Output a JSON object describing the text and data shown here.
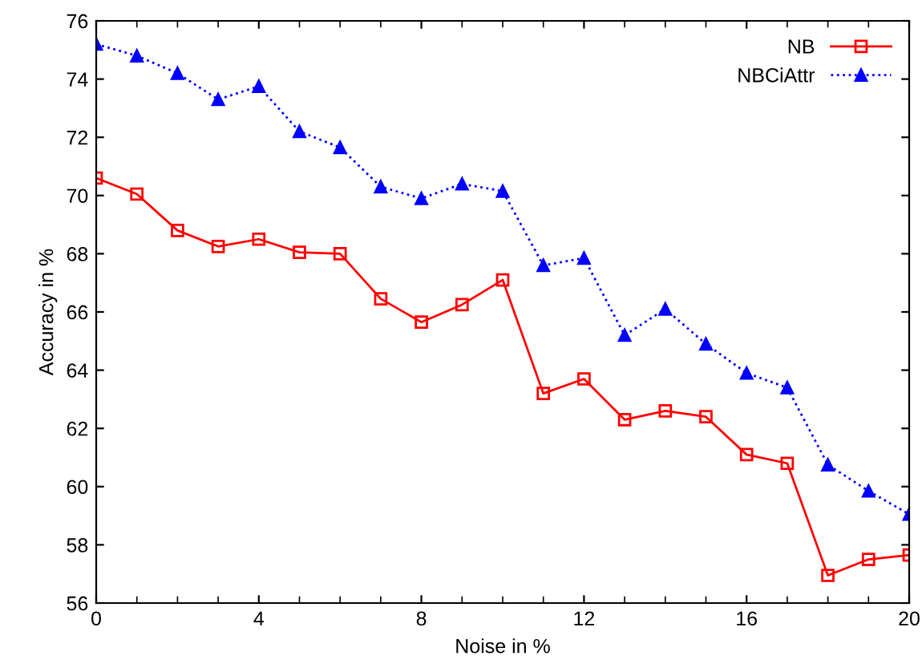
{
  "chart_data": {
    "type": "line",
    "xlabel": "Noise in %",
    "ylabel": "Accuracy in %",
    "x": [
      0,
      1,
      2,
      3,
      4,
      5,
      6,
      7,
      8,
      9,
      10,
      11,
      12,
      13,
      14,
      15,
      16,
      17,
      18,
      19,
      20
    ],
    "series": [
      {
        "name": "NB",
        "color": "#ff0000",
        "marker": "square",
        "line_style": "solid",
        "values": [
          70.6,
          70.05,
          68.8,
          68.25,
          68.5,
          68.05,
          68.0,
          66.45,
          65.65,
          66.25,
          67.1,
          63.2,
          63.7,
          62.3,
          62.6,
          62.4,
          61.1,
          60.8,
          56.95,
          57.5,
          57.65
        ]
      },
      {
        "name": "NBCiAttr",
        "color": "#0000ff",
        "marker": "triangle",
        "line_style": "dotted",
        "values": [
          75.2,
          74.8,
          74.2,
          73.3,
          73.75,
          72.2,
          71.65,
          70.3,
          69.9,
          70.4,
          70.15,
          67.6,
          67.85,
          65.2,
          66.1,
          64.9,
          63.9,
          63.4,
          60.75,
          59.85,
          59.05
        ]
      }
    ],
    "xlim": [
      0,
      20
    ],
    "xticks": [
      0,
      4,
      8,
      12,
      16,
      20
    ],
    "ylim": [
      56,
      76
    ],
    "yticks": [
      56,
      58,
      60,
      62,
      64,
      66,
      68,
      70,
      72,
      74,
      76
    ],
    "grid": false,
    "legend": "top right"
  }
}
